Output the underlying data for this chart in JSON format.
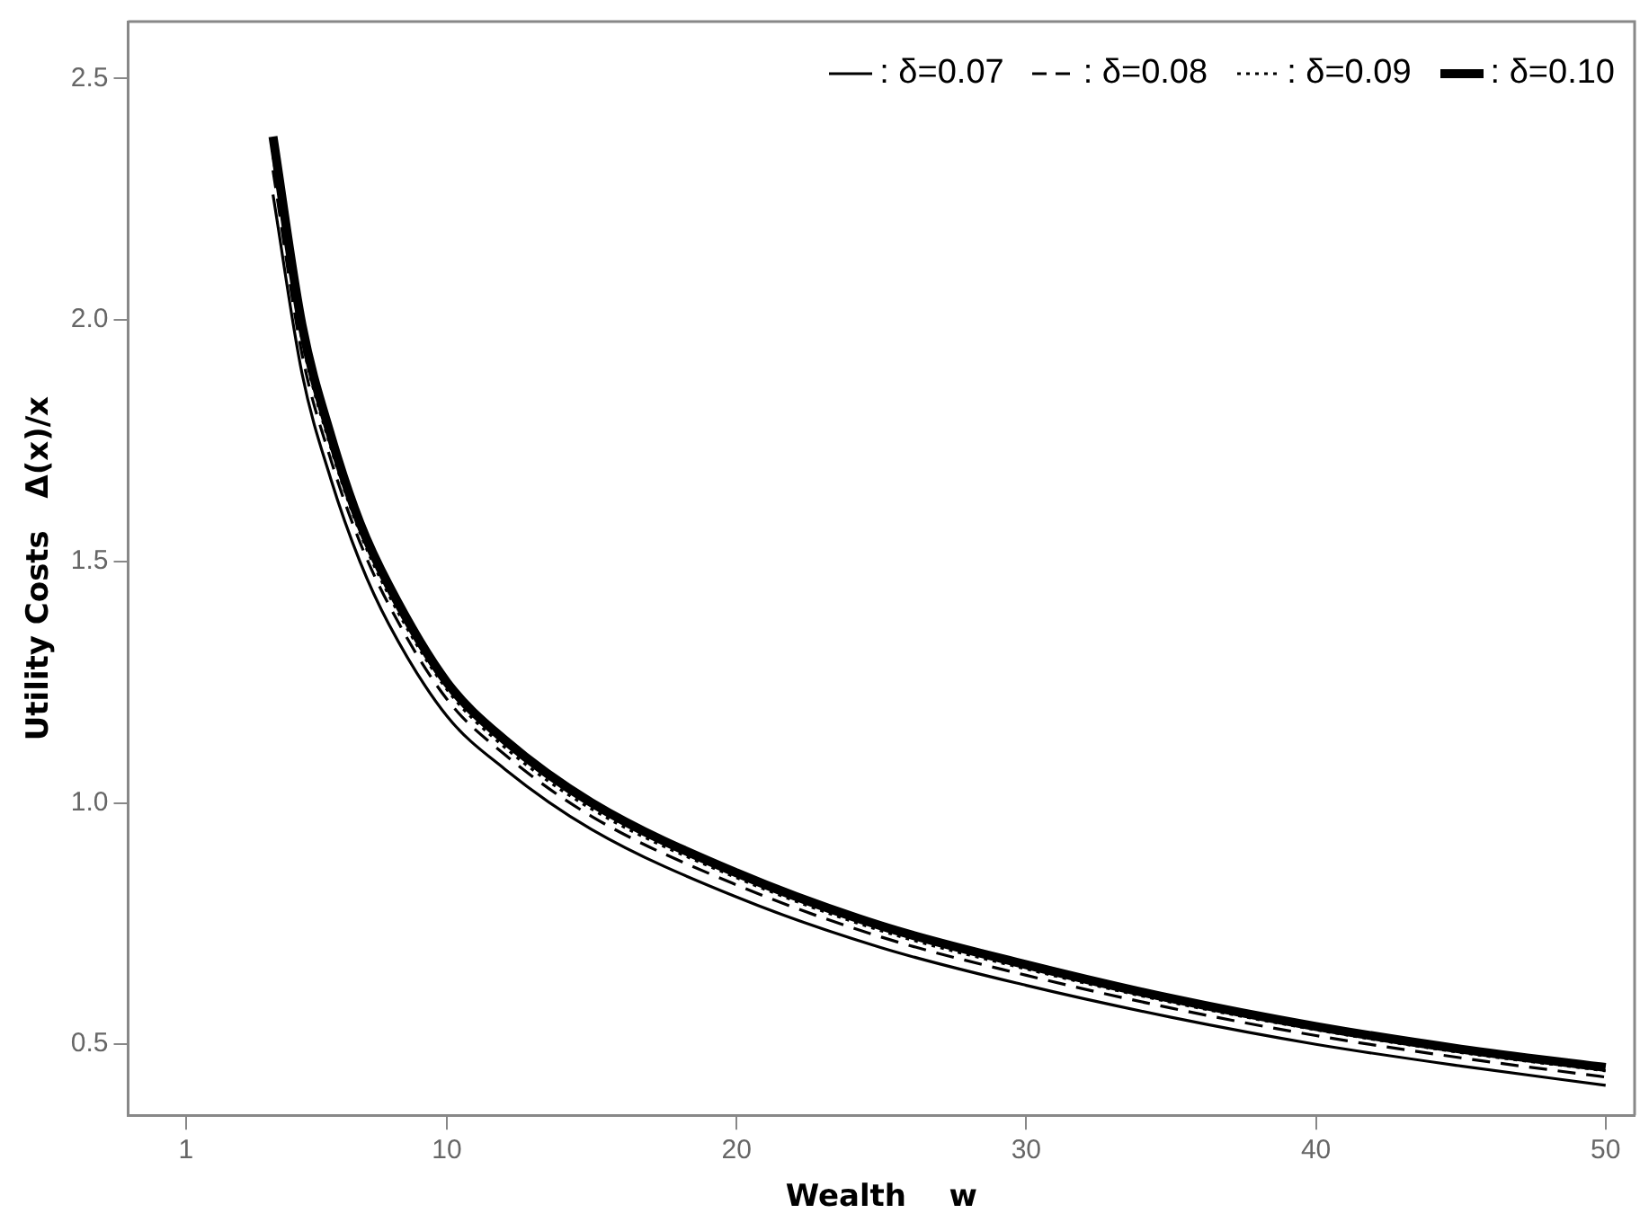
{
  "chart_data": {
    "type": "line",
    "xlabel": "Wealth    w",
    "ylabel": "Utility Costs   Δ(x)/x",
    "x": [
      4,
      5,
      6,
      7,
      8,
      10,
      12,
      15,
      20,
      25,
      30,
      35,
      40,
      45,
      50
    ],
    "series": [
      {
        "name": ": δ=0.07",
        "color": "#000000",
        "line_style": "solid",
        "values": [
          2.26,
          1.89,
          1.67,
          1.5,
          1.37,
          1.18,
          1.07,
          0.945,
          0.805,
          0.7,
          0.622,
          0.556,
          0.5,
          0.455,
          0.415
        ]
      },
      {
        "name": ": δ=0.08",
        "color": "#000000",
        "line_style": "dashed",
        "values": [
          2.31,
          1.93,
          1.71,
          1.54,
          1.41,
          1.215,
          1.1,
          0.972,
          0.83,
          0.722,
          0.643,
          0.575,
          0.518,
          0.472,
          0.432
        ]
      },
      {
        "name": ": δ=0.09",
        "color": "#000000",
        "line_style": "dotted",
        "values": [
          2.34,
          1.96,
          1.735,
          1.56,
          1.43,
          1.235,
          1.115,
          0.987,
          0.845,
          0.735,
          0.656,
          0.587,
          0.53,
          0.483,
          0.445
        ]
      },
      {
        "name": ": δ=0.10",
        "color": "#000000",
        "line_style": "solid",
        "values": [
          2.38,
          1.99,
          1.76,
          1.58,
          1.45,
          1.25,
          1.13,
          1.0,
          0.855,
          0.745,
          0.665,
          0.595,
          0.537,
          0.49,
          0.452
        ]
      }
    ],
    "xlim": [
      -1,
      51
    ],
    "xticks": [
      1,
      10,
      20,
      30,
      40,
      50
    ],
    "ylim": [
      0.353,
      2.618
    ],
    "yticks": [
      0.5,
      {
        "value": 1,
        "label": "1.0"
      },
      1.5,
      {
        "value": 2,
        "label": "2.0"
      },
      2.5
    ],
    "grid": false,
    "legend": "top right",
    "marker": "none"
  }
}
